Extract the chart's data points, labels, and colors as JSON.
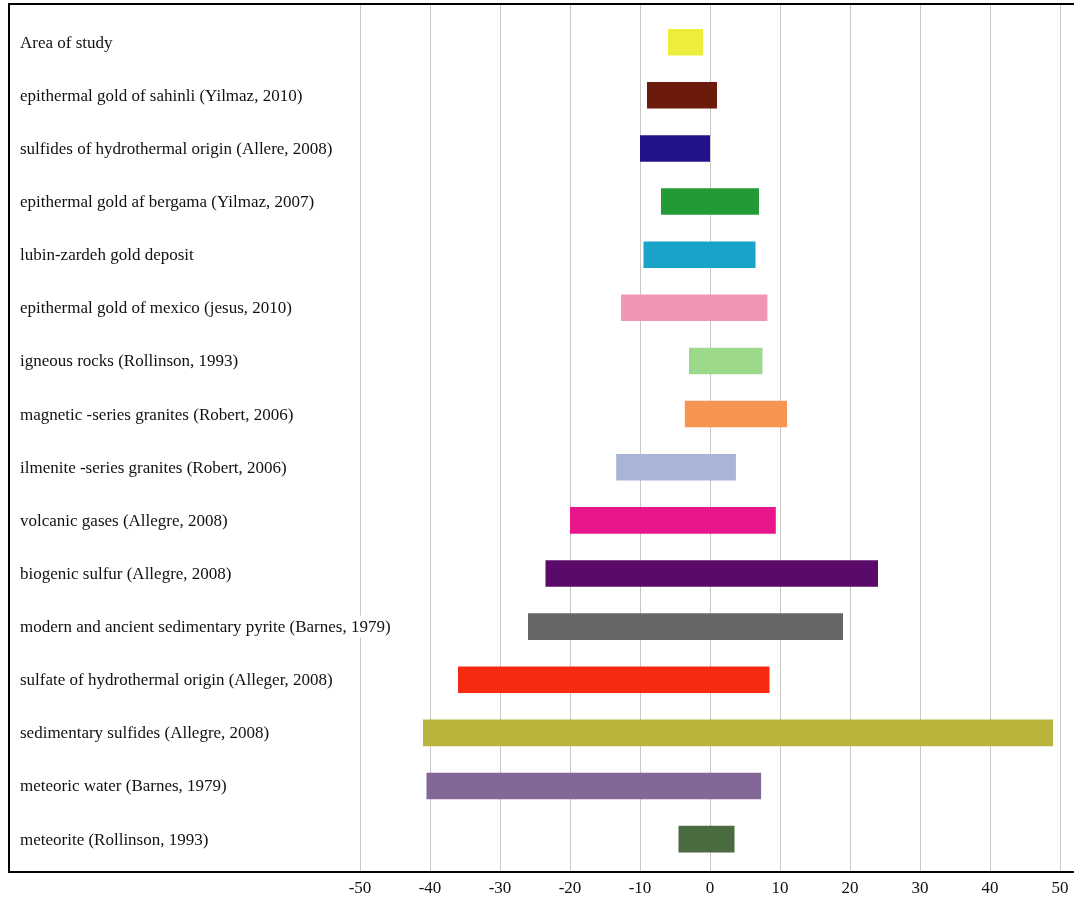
{
  "chart_data": {
    "type": "bar",
    "orientation": "horizontal",
    "categories": [
      "Area of study",
      "epithermal gold of sahinli (Yilmaz, 2010)",
      "sulfides of hydrothermal origin (Allere, 2008)",
      "epithermal gold af bergama (Yilmaz, 2007)",
      "lubin-zardeh gold deposit",
      "epithermal gold of mexico (jesus, 2010)",
      "igneous rocks (Rollinson, 1993)",
      "magnetic -series granites (Robert, 2006)",
      "ilmenite -series granites (Robert, 2006)",
      "volcanic gases (Allegre, 2008)",
      "biogenic sulfur (Allegre, 2008)",
      "modern and ancient sedimentary pyrite (Barnes, 1979)",
      "sulfate of hydrothermal origin (Alleger, 2008)",
      "sedimentary sulfides (Allegre, 2008)",
      "meteoric water (Barnes, 1979)",
      "meteorite (Rollinson, 1993)"
    ],
    "base": [
      -6,
      -9,
      -10,
      -7,
      -9.5,
      -12.7,
      -3,
      -3.6,
      -13.4,
      -20,
      -23.5,
      -26,
      -36,
      -41,
      -40.5,
      -4.5
    ],
    "values": [
      5,
      10,
      10,
      14,
      16,
      20.9,
      10.5,
      14.6,
      17.1,
      29.4,
      47.5,
      45,
      44.5,
      90,
      47.8,
      8
    ],
    "colors": [
      "#eded3c",
      "#6b1a0c",
      "#22128a",
      "#229a36",
      "#19a3c8",
      "#f095b4",
      "#9cd98a",
      "#f79452",
      "#a8b4d8",
      "#e8168a",
      "#5a0a68",
      "#666666",
      "#f52a10",
      "#b8b43c",
      "#826896",
      "#4a6a40"
    ],
    "xlim": [
      -100,
      52
    ],
    "xticks": [
      -50,
      -40,
      -30,
      -20,
      -10,
      0,
      10,
      20,
      30,
      40,
      50
    ],
    "grid": "x"
  }
}
